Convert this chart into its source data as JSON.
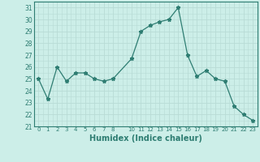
{
  "x": [
    0,
    1,
    2,
    3,
    4,
    5,
    6,
    7,
    8,
    10,
    11,
    12,
    13,
    14,
    15,
    16,
    17,
    18,
    19,
    20,
    21,
    22,
    23
  ],
  "y": [
    25.0,
    23.3,
    26.0,
    24.8,
    25.5,
    25.5,
    25.0,
    24.8,
    25.0,
    26.7,
    29.0,
    29.5,
    29.8,
    30.0,
    31.0,
    27.0,
    25.2,
    25.7,
    25.0,
    24.8,
    22.7,
    22.0,
    21.5
  ],
  "xlabel": "Humidex (Indice chaleur)",
  "xlim": [
    -0.5,
    23.5
  ],
  "ylim": [
    21,
    31.5
  ],
  "yticks": [
    21,
    22,
    23,
    24,
    25,
    26,
    27,
    28,
    29,
    30,
    31
  ],
  "xticks": [
    0,
    1,
    2,
    3,
    4,
    5,
    6,
    7,
    8,
    10,
    11,
    12,
    13,
    14,
    15,
    16,
    17,
    18,
    19,
    20,
    21,
    22,
    23
  ],
  "line_color": "#2e7d72",
  "marker": "*",
  "bg_color": "#cceee8",
  "grid_color": "#b8dbd6",
  "axis_color": "#2e7d72"
}
